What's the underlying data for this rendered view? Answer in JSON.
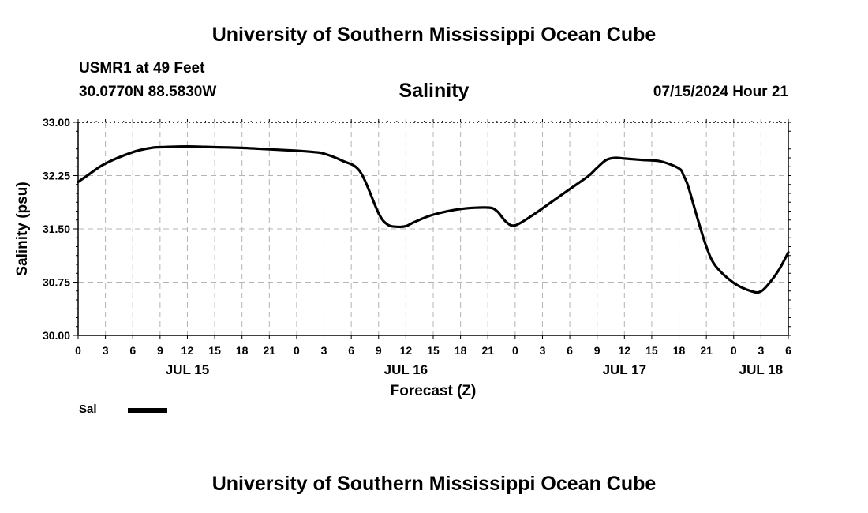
{
  "header": {
    "title": "University of Southern Mississippi Ocean Cube",
    "station": "USMR1 at 49 Feet",
    "coords": "30.0770N  88.5830W",
    "variable": "Salinity",
    "timestamp": "07/15/2024 Hour 21"
  },
  "footer": {
    "title": "University of Southern Mississippi Ocean Cube"
  },
  "legend": {
    "label": "Sal",
    "color": "#000000"
  },
  "chart_data": {
    "type": "line",
    "title": "Salinity",
    "xlabel": "Forecast (Z)",
    "ylabel": "Salinity (psu)",
    "xlim": [
      0,
      78
    ],
    "ylim": [
      30.0,
      33.0
    ],
    "yticks": [
      "30.00",
      "30.75",
      "31.50",
      "32.25",
      "33.00"
    ],
    "xticks": [
      "0",
      "3",
      "6",
      "9",
      "12",
      "15",
      "18",
      "21",
      "0",
      "3",
      "6",
      "9",
      "12",
      "15",
      "18",
      "21",
      "0",
      "3",
      "6",
      "9",
      "12",
      "15",
      "18",
      "21",
      "0",
      "3",
      "6"
    ],
    "date_labels": [
      {
        "label": "JUL 15",
        "hour": 12
      },
      {
        "label": "JUL 16",
        "hour": 36
      },
      {
        "label": "JUL 17",
        "hour": 60
      },
      {
        "label": "JUL 18",
        "hour": 75
      }
    ],
    "grid": true,
    "legend_position": "bottom-left",
    "series": [
      {
        "name": "Sal",
        "color": "#000000",
        "x": [
          0,
          1,
          3,
          6,
          8,
          9,
          12,
          15,
          18,
          21,
          24,
          26,
          27,
          29,
          31,
          33,
          34,
          35,
          36,
          37,
          39,
          42,
          45,
          46,
          47,
          48,
          50,
          52,
          54,
          56,
          57,
          58,
          59,
          60,
          62,
          64,
          66,
          66.5,
          67,
          68,
          69,
          70,
          72,
          74,
          75,
          76,
          77,
          78
        ],
        "y": [
          32.16,
          32.25,
          32.42,
          32.58,
          32.64,
          32.65,
          32.66,
          32.65,
          32.64,
          32.62,
          32.6,
          32.58,
          32.56,
          32.46,
          32.3,
          31.72,
          31.56,
          31.53,
          31.54,
          31.6,
          31.7,
          31.78,
          31.8,
          31.75,
          31.6,
          31.55,
          31.7,
          31.88,
          32.06,
          32.24,
          32.36,
          32.47,
          32.5,
          32.49,
          32.47,
          32.45,
          32.35,
          32.25,
          32.1,
          31.66,
          31.25,
          30.98,
          30.74,
          30.62,
          30.62,
          30.75,
          30.93,
          31.17
        ]
      }
    ]
  }
}
